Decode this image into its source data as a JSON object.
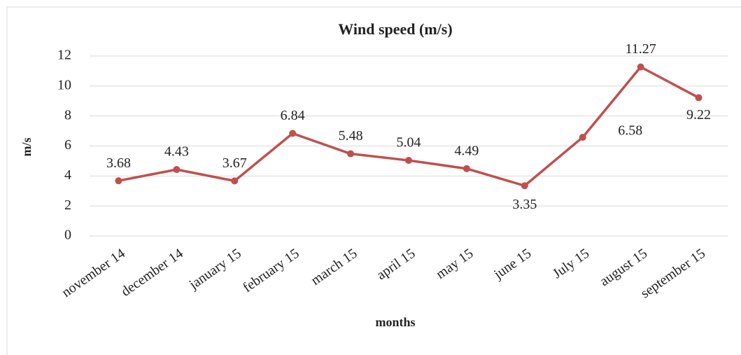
{
  "chart_data": {
    "type": "line",
    "title": "Wind speed  (m/s)",
    "x_label": "months",
    "y_label": "m/s",
    "categories": [
      "november 14",
      "december 14",
      "january 15",
      "february 15",
      "march 15",
      "april 15",
      "may 15",
      "june 15",
      "July 15",
      "august 15",
      "september 15"
    ],
    "series": [
      {
        "name": "Wind speed",
        "color": "#c0504d",
        "values": [
          3.68,
          4.43,
          3.67,
          6.84,
          5.48,
          5.04,
          4.49,
          3.35,
          6.58,
          11.27,
          9.22
        ]
      }
    ],
    "ylim": [
      0,
      12
    ],
    "yticks": [
      0,
      2,
      4,
      6,
      8,
      10,
      12
    ],
    "grid": true
  }
}
